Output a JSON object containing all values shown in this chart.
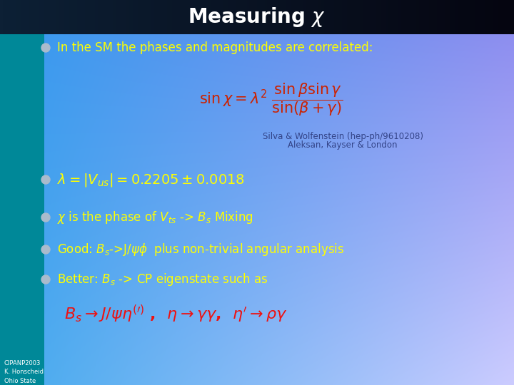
{
  "title": "Measuring $\\chi$",
  "title_color": "#FFFFFF",
  "title_bg_left": "#001a2e",
  "title_bg_right": "#0a0a1a",
  "left_bar_color": "#008090",
  "bg_color_topleft": "#3399ee",
  "bg_color_topright": "#8888ee",
  "bg_color_bottomleft": "#44aaee",
  "bg_color_bottomright": "#ccccff",
  "attribution1": "Silva & Wolfenstein (hep-ph/9610208)",
  "attribution2": "Aleksan, Kayser & London",
  "attribution_color": "#334488",
  "footer": "CIPANP2003\nK. Honscheid\nOhio State",
  "footer_color": "#FFFFFF",
  "yellow": "#FFFF00",
  "red": "#EE1111",
  "title_fontsize": 20,
  "body_fontsize": 12,
  "formula_fontsize": 15,
  "footer_fontsize": 6
}
